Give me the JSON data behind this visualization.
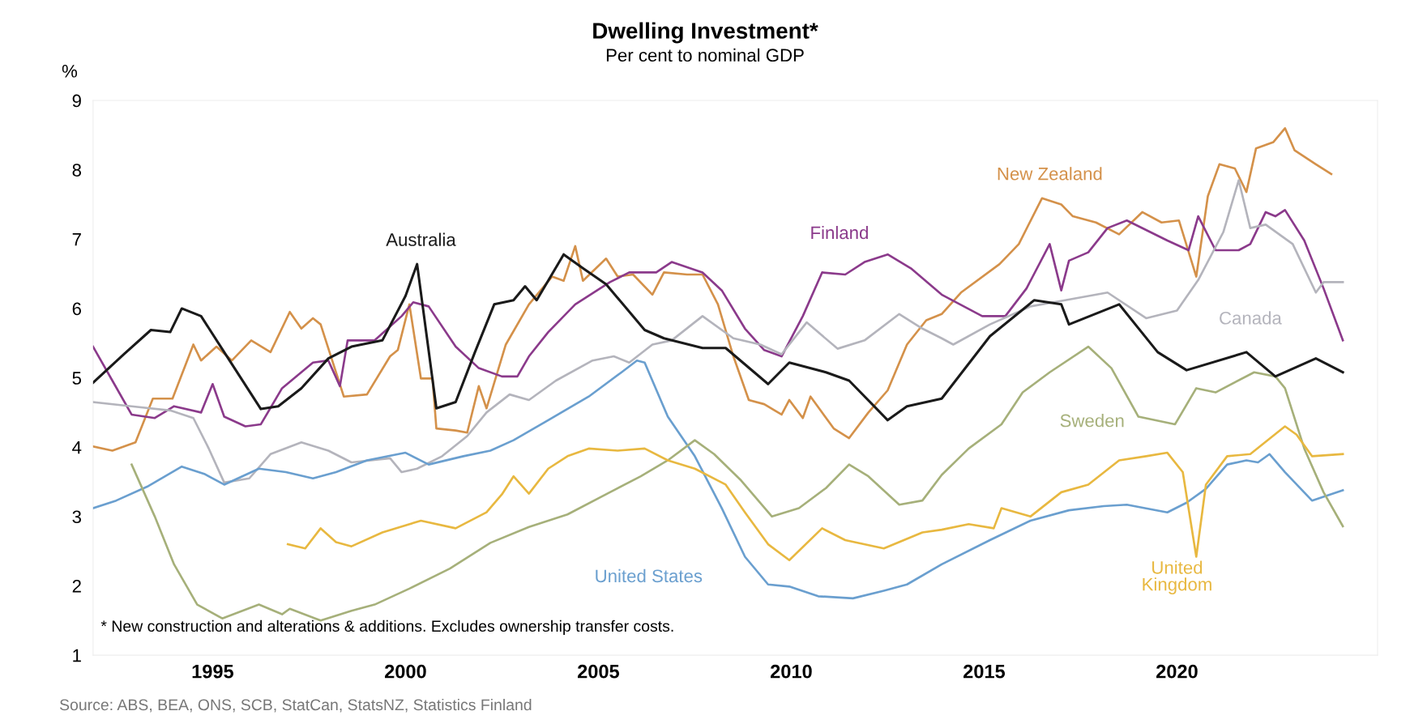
{
  "chart_data": {
    "type": "line",
    "title": "Dwelling Investment*",
    "subtitle": "Per cent to nominal GDP",
    "ylabel": "%",
    "xlim": [
      1991.9,
      2025.2
    ],
    "xticks": [
      1995,
      2000,
      2005,
      2010,
      2015,
      2020
    ],
    "ylim": [
      1,
      9
    ],
    "yticks": [
      1,
      2,
      3,
      4,
      5,
      6,
      7,
      8,
      9
    ],
    "grid": false,
    "legend": false,
    "annotations": [
      "* New construction and alterations & additions. Excludes ownership transfer costs.",
      "Source: ABS, BEA, ONS, SCB, StatCan, StatsNZ, Statistics Finland"
    ],
    "series": [
      {
        "name": "Australia",
        "color": "#1a1a1a",
        "x": [
          1991.9,
          1992.7,
          1993.4,
          1993.9,
          1994.2,
          1994.7,
          1995.3,
          1996.25,
          1996.7,
          1997.3,
          1998.0,
          1998.6,
          1999.4,
          2000.0,
          2000.3,
          2000.8,
          2001.3,
          2001.8,
          2002.3,
          2002.8,
          2003.1,
          2003.4,
          2004.1,
          2004.6,
          2005.2,
          2006.2,
          2006.7,
          2007.7,
          2008.3,
          2009.4,
          2009.95,
          2010.9,
          2011.5,
          2012.5,
          2013.0,
          2013.9,
          2015.15,
          2016.3,
          2017.0,
          2017.2,
          2018.5,
          2019.5,
          2020.25,
          2021.8,
          2022.55,
          2023.6,
          2024.3
        ],
        "values": [
          4.93,
          5.34,
          5.69,
          5.66,
          6.0,
          5.89,
          5.37,
          4.55,
          4.59,
          4.85,
          5.28,
          5.45,
          5.54,
          6.18,
          6.64,
          4.56,
          4.65,
          5.37,
          6.06,
          6.12,
          6.32,
          6.12,
          6.78,
          6.58,
          6.35,
          5.69,
          5.57,
          5.43,
          5.43,
          4.91,
          5.22,
          5.08,
          4.96,
          4.39,
          4.59,
          4.7,
          5.6,
          6.12,
          6.06,
          5.77,
          6.06,
          5.37,
          5.11,
          5.37,
          5.02,
          5.28,
          5.08
        ]
      },
      {
        "name": "New Zealand",
        "color": "#d4914a",
        "x": [
          1991.9,
          1992.4,
          1993.0,
          1993.45,
          1993.96,
          1994.5,
          1994.7,
          1995.1,
          1995.5,
          1996.0,
          1996.5,
          1997.0,
          1997.3,
          1997.6,
          1997.8,
          1998.4,
          1999.0,
          1999.6,
          1999.8,
          2000.1,
          2000.4,
          2000.7,
          2000.8,
          2001.3,
          2001.6,
          2001.9,
          2002.1,
          2002.6,
          2003.2,
          2003.8,
          2004.1,
          2004.4,
          2004.6,
          2005.2,
          2005.5,
          2005.9,
          2006.4,
          2006.7,
          2007.3,
          2007.7,
          2008.1,
          2008.5,
          2008.9,
          2009.3,
          2009.75,
          2009.95,
          2010.3,
          2010.5,
          2011.1,
          2011.5,
          2012.0,
          2012.5,
          2013.0,
          2013.5,
          2013.9,
          2014.4,
          2015.4,
          2015.9,
          2016.5,
          2017.0,
          2017.3,
          2017.9,
          2018.5,
          2019.1,
          2019.6,
          2020.05,
          2020.5,
          2020.8,
          2021.1,
          2021.5,
          2021.8,
          2022.05,
          2022.5,
          2022.8,
          2023.05,
          2023.6,
          2024.0
        ],
        "values": [
          4.01,
          3.95,
          4.07,
          4.7,
          4.7,
          5.48,
          5.25,
          5.45,
          5.25,
          5.54,
          5.37,
          5.95,
          5.71,
          5.86,
          5.77,
          4.73,
          4.76,
          5.31,
          5.4,
          6.06,
          4.99,
          4.99,
          4.27,
          4.24,
          4.21,
          4.88,
          4.56,
          5.48,
          6.06,
          6.46,
          6.4,
          6.9,
          6.4,
          6.72,
          6.46,
          6.49,
          6.2,
          6.52,
          6.49,
          6.49,
          6.06,
          5.31,
          4.68,
          4.62,
          4.47,
          4.68,
          4.42,
          4.73,
          4.27,
          4.13,
          4.5,
          4.82,
          5.48,
          5.83,
          5.92,
          6.23,
          6.64,
          6.93,
          7.59,
          7.5,
          7.33,
          7.24,
          7.07,
          7.39,
          7.24,
          7.27,
          6.46,
          7.62,
          8.08,
          8.02,
          7.68,
          8.31,
          8.4,
          8.6,
          8.28,
          8.08,
          7.94
        ]
      },
      {
        "name": "Finland",
        "color": "#8b3a8b",
        "x": [
          1991.9,
          1992.4,
          1992.9,
          1993.5,
          1994.0,
          1994.7,
          1995.0,
          1995.3,
          1995.85,
          1996.25,
          1996.8,
          1997.6,
          1998.0,
          1998.3,
          1998.5,
          1999.2,
          1999.9,
          2000.2,
          2000.6,
          2001.3,
          2001.9,
          2002.5,
          2002.9,
          2003.2,
          2003.7,
          2004.4,
          2005.3,
          2005.8,
          2006.5,
          2006.9,
          2007.7,
          2008.2,
          2008.8,
          2009.3,
          2009.75,
          2010.3,
          2010.8,
          2011.4,
          2011.9,
          2012.5,
          2013.1,
          2013.9,
          2014.95,
          2015.55,
          2016.1,
          2016.7,
          2017.0,
          2017.2,
          2017.7,
          2018.2,
          2018.7,
          2019.75,
          2020.3,
          2020.55,
          2021.0,
          2021.6,
          2021.9,
          2022.3,
          2022.55,
          2022.8,
          2023.3,
          2023.8,
          2024.3
        ],
        "values": [
          5.45,
          4.96,
          4.47,
          4.42,
          4.59,
          4.5,
          4.91,
          4.44,
          4.3,
          4.33,
          4.85,
          5.22,
          5.25,
          4.88,
          5.54,
          5.54,
          5.89,
          6.09,
          6.03,
          5.45,
          5.14,
          5.02,
          5.02,
          5.31,
          5.66,
          6.06,
          6.38,
          6.52,
          6.52,
          6.67,
          6.52,
          6.26,
          5.71,
          5.4,
          5.31,
          5.89,
          6.52,
          6.49,
          6.67,
          6.78,
          6.58,
          6.2,
          5.89,
          5.89,
          6.29,
          6.93,
          6.26,
          6.69,
          6.81,
          7.16,
          7.27,
          6.98,
          6.84,
          7.33,
          6.84,
          6.84,
          6.93,
          7.39,
          7.33,
          7.42,
          6.98,
          6.29,
          5.54
        ]
      },
      {
        "name": "Canada",
        "color": "#b4b4bc",
        "x": [
          1991.9,
          1992.9,
          1993.9,
          1994.5,
          1994.9,
          1995.3,
          1995.95,
          1996.5,
          1997.3,
          1998.0,
          1998.6,
          1999.6,
          1999.9,
          2000.3,
          2000.95,
          2001.6,
          2002.1,
          2002.7,
          2003.2,
          2003.9,
          2004.85,
          2005.4,
          2005.8,
          2006.4,
          2006.9,
          2007.7,
          2008.5,
          2009.2,
          2009.75,
          2010.4,
          2011.2,
          2011.9,
          2012.8,
          2013.4,
          2013.9,
          2014.2,
          2015.15,
          2016.2,
          2017.1,
          2018.2,
          2019.2,
          2020.0,
          2020.55,
          2021.2,
          2021.6,
          2021.9,
          2022.3,
          2023.0,
          2023.6,
          2023.8,
          2024.3
        ],
        "values": [
          4.65,
          4.59,
          4.53,
          4.42,
          3.98,
          3.49,
          3.55,
          3.9,
          4.07,
          3.95,
          3.78,
          3.84,
          3.64,
          3.69,
          3.87,
          4.16,
          4.5,
          4.76,
          4.68,
          4.96,
          5.25,
          5.31,
          5.22,
          5.48,
          5.54,
          5.89,
          5.57,
          5.48,
          5.34,
          5.8,
          5.42,
          5.54,
          5.92,
          5.71,
          5.57,
          5.48,
          5.77,
          6.03,
          6.12,
          6.23,
          5.86,
          5.97,
          6.41,
          7.1,
          7.85,
          7.16,
          7.21,
          6.93,
          6.23,
          6.38,
          6.38
        ]
      },
      {
        "name": "United States",
        "color": "#6a9fcf",
        "x": [
          1991.9,
          1992.5,
          1993.3,
          1994.2,
          1994.8,
          1995.3,
          1996.2,
          1996.9,
          1997.6,
          1998.2,
          1999.0,
          2000.0,
          2000.6,
          2001.5,
          2002.2,
          2002.8,
          2003.7,
          2004.75,
          2005.6,
          2006.0,
          2006.2,
          2006.8,
          2007.5,
          2008.2,
          2008.8,
          2009.4,
          2009.95,
          2010.7,
          2011.6,
          2012.4,
          2013.0,
          2013.9,
          2015.15,
          2016.2,
          2017.2,
          2018.1,
          2018.7,
          2019.75,
          2020.25,
          2020.75,
          2021.3,
          2021.8,
          2022.1,
          2022.4,
          2022.8,
          2023.5,
          2024.3
        ],
        "values": [
          3.12,
          3.23,
          3.43,
          3.72,
          3.61,
          3.46,
          3.69,
          3.64,
          3.55,
          3.64,
          3.81,
          3.92,
          3.75,
          3.87,
          3.95,
          4.1,
          4.39,
          4.73,
          5.08,
          5.25,
          5.22,
          4.44,
          3.87,
          3.12,
          2.42,
          2.02,
          1.99,
          1.85,
          1.82,
          1.93,
          2.02,
          2.31,
          2.66,
          2.94,
          3.09,
          3.15,
          3.17,
          3.06,
          3.2,
          3.4,
          3.75,
          3.81,
          3.78,
          3.9,
          3.64,
          3.23,
          3.38
        ]
      },
      {
        "name": "Sweden",
        "color": "#a6b07a",
        "x": [
          1992.9,
          1993.5,
          1994.0,
          1994.6,
          1995.25,
          1996.2,
          1996.8,
          1997.0,
          1997.8,
          1998.6,
          1999.2,
          2000.1,
          2001.15,
          2002.2,
          2003.2,
          2004.2,
          2005.3,
          2006.1,
          2006.8,
          2007.5,
          2008.0,
          2008.7,
          2009.5,
          2010.2,
          2010.9,
          2011.5,
          2012.0,
          2012.8,
          2013.4,
          2013.9,
          2014.6,
          2015.45,
          2016.0,
          2016.7,
          2017.7,
          2018.3,
          2019.0,
          2019.95,
          2020.5,
          2021.0,
          2022.0,
          2022.55,
          2022.8,
          2023.3,
          2023.8,
          2024.3
        ],
        "values": [
          3.75,
          3.0,
          2.31,
          1.73,
          1.53,
          1.73,
          1.59,
          1.67,
          1.5,
          1.64,
          1.73,
          1.96,
          2.25,
          2.62,
          2.85,
          3.03,
          3.35,
          3.58,
          3.81,
          4.1,
          3.9,
          3.52,
          3.0,
          3.12,
          3.41,
          3.75,
          3.58,
          3.17,
          3.23,
          3.6,
          3.98,
          4.33,
          4.79,
          5.08,
          5.45,
          5.14,
          4.44,
          4.33,
          4.85,
          4.79,
          5.08,
          5.02,
          4.85,
          3.98,
          3.35,
          2.86
        ]
      },
      {
        "name": "United\nKingdom",
        "color": "#e8b840",
        "x": [
          1996.95,
          1997.4,
          1997.8,
          1998.2,
          1998.6,
          1999.4,
          2000.4,
          2001.3,
          2002.1,
          2002.5,
          2002.8,
          2003.2,
          2003.7,
          2004.2,
          2004.75,
          2005.5,
          2006.2,
          2006.8,
          2007.5,
          2008.3,
          2008.8,
          2009.4,
          2009.95,
          2010.8,
          2011.4,
          2012.4,
          2013.4,
          2013.9,
          2014.6,
          2015.25,
          2015.45,
          2016.2,
          2017.0,
          2017.7,
          2018.5,
          2019.2,
          2019.75,
          2020.15,
          2020.5,
          2020.75,
          2021.3,
          2021.9,
          2022.8,
          2023.1,
          2023.5,
          2024.3
        ],
        "values": [
          2.6,
          2.54,
          2.83,
          2.63,
          2.57,
          2.77,
          2.94,
          2.83,
          3.06,
          3.32,
          3.58,
          3.33,
          3.69,
          3.87,
          3.98,
          3.95,
          3.98,
          3.81,
          3.69,
          3.46,
          3.06,
          2.6,
          2.37,
          2.83,
          2.66,
          2.54,
          2.77,
          2.81,
          2.89,
          2.83,
          3.12,
          3.0,
          3.35,
          3.46,
          3.81,
          3.87,
          3.92,
          3.64,
          2.42,
          3.46,
          3.87,
          3.9,
          4.3,
          4.18,
          3.87,
          3.9
        ]
      }
    ]
  }
}
